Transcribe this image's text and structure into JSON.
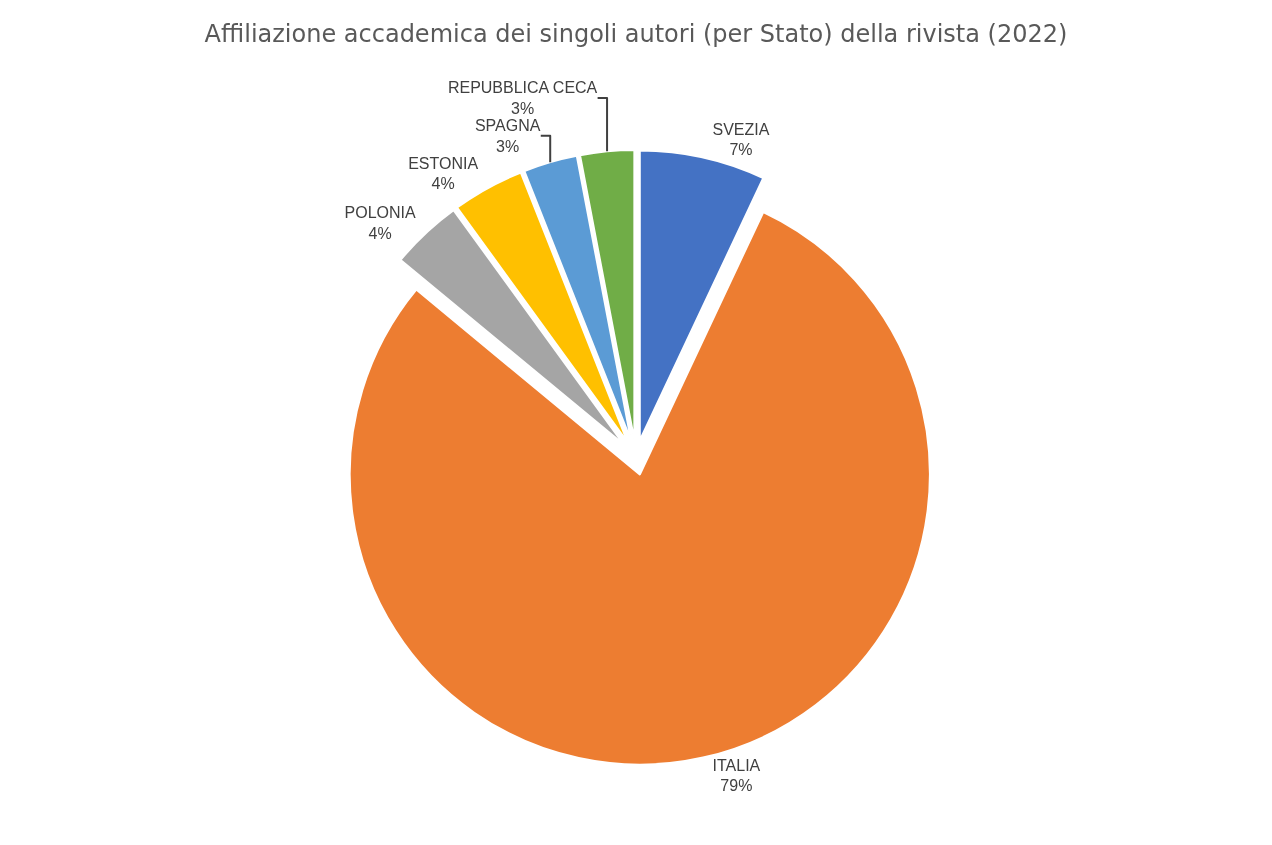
{
  "chart_data": {
    "type": "pie",
    "title": "Affiliazione accademica dei singoli autori (per Stato) della rivista (2022)",
    "categories": [
      "SVEZIA",
      "ITALIA",
      "POLONIA",
      "ESTONIA",
      "SPAGNA",
      "REPUBBLICA CECA"
    ],
    "values": [
      7,
      79,
      4,
      4,
      3,
      3
    ],
    "value_labels": [
      "7%",
      "79%",
      "4%",
      "4%",
      "3%",
      "3%"
    ],
    "colors": [
      "#4472c4",
      "#ed7d31",
      "#a5a5a5",
      "#ffc000",
      "#5b9bd5",
      "#70ad47"
    ],
    "legend": false
  }
}
